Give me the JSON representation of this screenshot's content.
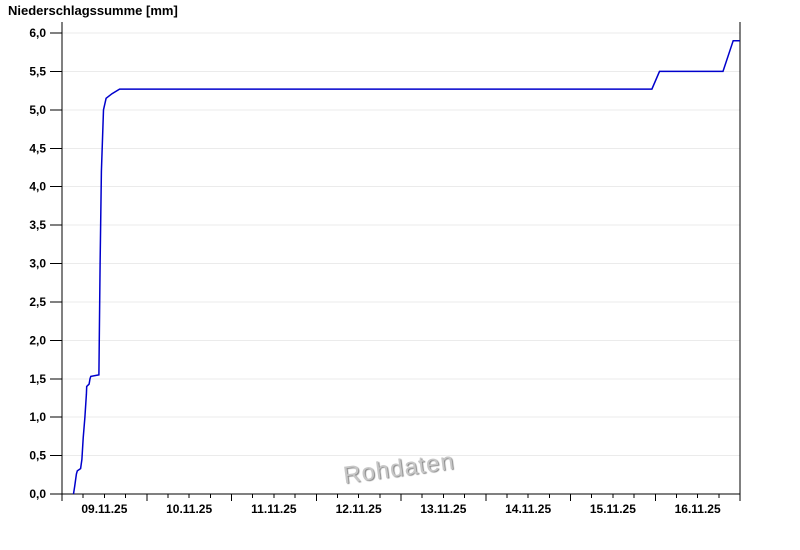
{
  "title": "Niederschlagssumme [mm]",
  "watermark": "Rohdaten",
  "colors": {
    "line": "#0000cc",
    "grid": "#ebebeb",
    "axis": "#000000",
    "background": "#ffffff",
    "watermark_text": "#c6c6c6"
  },
  "chart_data": {
    "type": "line",
    "title": "Niederschlagssumme [mm]",
    "watermark": "Rohdaten",
    "ylabel": "Niederschlagssumme [mm]",
    "xlabel": "",
    "ylim": [
      0,
      6
    ],
    "x_span_days": 8,
    "grid": "horizontal",
    "legend": "none",
    "x_minor_divisions_per_day": 4,
    "y_ticks": [
      {
        "value": 0.0,
        "label": "0,0"
      },
      {
        "value": 0.5,
        "label": "0,5"
      },
      {
        "value": 1.0,
        "label": "1,0"
      },
      {
        "value": 1.5,
        "label": "1,5"
      },
      {
        "value": 2.0,
        "label": "2,0"
      },
      {
        "value": 2.5,
        "label": "2,5"
      },
      {
        "value": 3.0,
        "label": "3,0"
      },
      {
        "value": 3.5,
        "label": "3,5"
      },
      {
        "value": 4.0,
        "label": "4,0"
      },
      {
        "value": 4.5,
        "label": "4,5"
      },
      {
        "value": 5.0,
        "label": "5,0"
      },
      {
        "value": 5.5,
        "label": "5,5"
      },
      {
        "value": 6.0,
        "label": "6,0"
      }
    ],
    "x_ticks": [
      {
        "day": 0,
        "label": "09.11.25"
      },
      {
        "day": 1,
        "label": "10.11.25"
      },
      {
        "day": 2,
        "label": "11.11.25"
      },
      {
        "day": 3,
        "label": "12.11.25"
      },
      {
        "day": 4,
        "label": "13.11.25"
      },
      {
        "day": 5,
        "label": "14.11.25"
      },
      {
        "day": 6,
        "label": "15.11.25"
      },
      {
        "day": 7,
        "label": "16.11.25"
      }
    ],
    "series": [
      {
        "name": "Niederschlagssumme",
        "color": "#0000cc",
        "points": [
          [
            0.136,
            0.0
          ],
          [
            0.15,
            0.1
          ],
          [
            0.17,
            0.26
          ],
          [
            0.18,
            0.3
          ],
          [
            0.22,
            0.33
          ],
          [
            0.235,
            0.45
          ],
          [
            0.25,
            0.73
          ],
          [
            0.27,
            1.0
          ],
          [
            0.288,
            1.3
          ],
          [
            0.292,
            1.4
          ],
          [
            0.32,
            1.43
          ],
          [
            0.33,
            1.5
          ],
          [
            0.34,
            1.53
          ],
          [
            0.435,
            1.55
          ],
          [
            0.45,
            3.0
          ],
          [
            0.465,
            4.2
          ],
          [
            0.49,
            5.0
          ],
          [
            0.52,
            5.15
          ],
          [
            0.59,
            5.21
          ],
          [
            0.68,
            5.27
          ],
          [
            6.96,
            5.27
          ],
          [
            7.05,
            5.5
          ],
          [
            7.8,
            5.5
          ],
          [
            7.92,
            5.9
          ],
          [
            8.0,
            5.9
          ]
        ]
      }
    ]
  }
}
